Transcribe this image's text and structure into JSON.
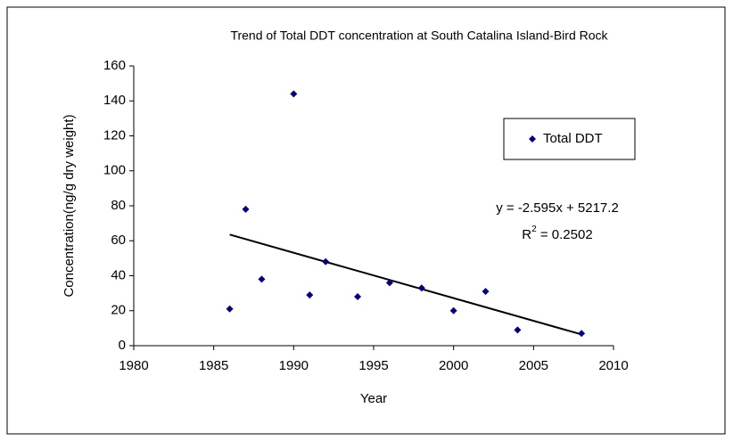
{
  "chart_data": {
    "type": "scatter",
    "title": "Trend of Total DDT concentration at South Catalina Island-Bird Rock",
    "x_label": "Year",
    "y_label": "Concentration(ng/g dry weight)",
    "series": [
      {
        "name": "Total DDT",
        "color": "#000080",
        "x": [
          1986,
          1987,
          1988,
          1990,
          1991,
          1992,
          1994,
          1996,
          1998,
          2000,
          2002,
          2004,
          2008
        ],
        "values": [
          21,
          78,
          38,
          144,
          29,
          48,
          28,
          36,
          33,
          20,
          31,
          9,
          7
        ]
      }
    ],
    "xlim": [
      1980,
      2010
    ],
    "xticks": [
      1980,
      1985,
      1990,
      1995,
      2000,
      2005,
      2010
    ],
    "ylim": [
      0,
      160
    ],
    "yticks": [
      0,
      20,
      40,
      60,
      80,
      100,
      120,
      140,
      160
    ],
    "grid": false,
    "legend": "upper right",
    "trendline": {
      "equation": "y = -2.595x + 5217.2",
      "slope": -2.595,
      "intercept": 5217.2,
      "r_squared": 0.2502,
      "r_squared_label": [
        "R",
        "2",
        " = 0.2502"
      ],
      "color": "#000000"
    }
  }
}
